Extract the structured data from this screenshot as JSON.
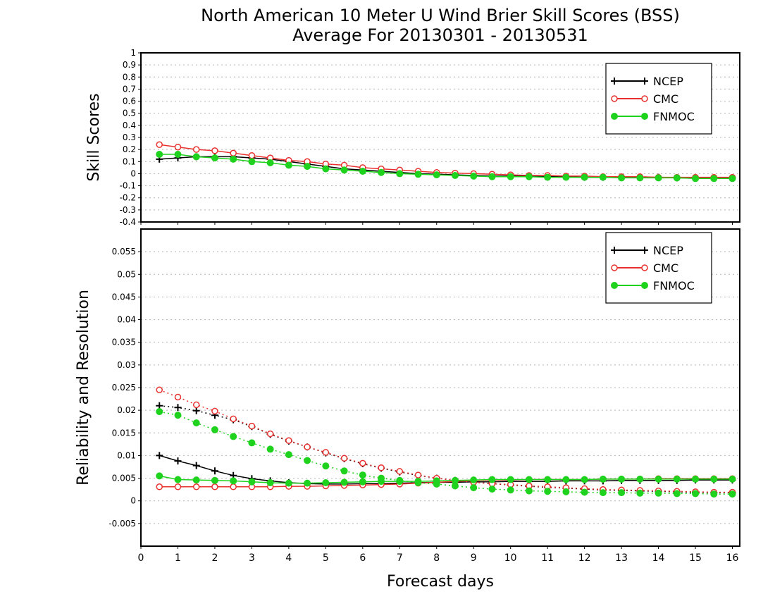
{
  "title_line1": "North American 10 Meter U Wind Brier Skill Scores (BSS)",
  "title_line2": "Average For 20130301 - 20130531",
  "xlabel": "Forecast days",
  "colors": {
    "NCEP": "#000000",
    "CMC": "#e8312f",
    "FNMOC": "#1ed21e"
  },
  "chart_data": [
    {
      "type": "line",
      "ylabel": "Skill Scores",
      "xlim": [
        0,
        16.2
      ],
      "ylim": [
        -0.4,
        1
      ],
      "yticks": [
        -0.4,
        -0.3,
        -0.2,
        -0.1,
        0,
        0.1,
        0.2,
        0.3,
        0.4,
        0.5,
        0.6,
        0.7,
        0.8,
        0.9,
        1
      ],
      "yticklabels": [
        "-0.4",
        "-0.3",
        "-0.2",
        "-0.1",
        "0",
        "0.1",
        "0.2",
        "0.3",
        "0.4",
        "0.5",
        "0.6",
        "0.7",
        "0.8",
        "0.9",
        "1"
      ],
      "xticks": [
        0,
        1,
        2,
        3,
        4,
        5,
        6,
        7,
        8,
        9,
        10,
        11,
        12,
        13,
        14,
        15,
        16
      ],
      "grid": true,
      "legend_position": "top-right",
      "x": [
        0.5,
        1,
        1.5,
        2,
        2.5,
        3,
        3.5,
        4,
        4.5,
        5,
        5.5,
        6,
        6.5,
        7,
        7.5,
        8,
        8.5,
        9,
        9.5,
        10,
        10.5,
        11,
        11.5,
        12,
        12.5,
        13,
        13.5,
        14,
        14.5,
        15,
        15.5,
        16
      ],
      "series": [
        {
          "name": "NCEP",
          "style": "solid",
          "marker": "plus",
          "values": [
            0.12,
            0.13,
            0.14,
            0.14,
            0.14,
            0.13,
            0.12,
            0.1,
            0.08,
            0.06,
            0.04,
            0.03,
            0.02,
            0.01,
            0.0,
            -0.005,
            -0.01,
            -0.015,
            -0.02,
            -0.02,
            -0.02,
            -0.025,
            -0.025,
            -0.03,
            -0.03,
            -0.03,
            -0.03,
            -0.03,
            -0.035,
            -0.035,
            -0.035,
            -0.035
          ]
        },
        {
          "name": "CMC",
          "style": "solid",
          "marker": "open-circle",
          "values": [
            0.24,
            0.22,
            0.2,
            0.19,
            0.17,
            0.15,
            0.13,
            0.11,
            0.1,
            0.08,
            0.07,
            0.05,
            0.04,
            0.03,
            0.02,
            0.01,
            0.005,
            0.0,
            -0.005,
            -0.01,
            -0.015,
            -0.015,
            -0.02,
            -0.02,
            -0.025,
            -0.025,
            -0.025,
            -0.03,
            -0.03,
            -0.03,
            -0.03,
            -0.03
          ]
        },
        {
          "name": "FNMOC",
          "style": "solid",
          "marker": "filled-circle",
          "values": [
            0.16,
            0.16,
            0.14,
            0.13,
            0.12,
            0.1,
            0.09,
            0.07,
            0.06,
            0.04,
            0.03,
            0.02,
            0.01,
            0.0,
            -0.005,
            -0.01,
            -0.015,
            -0.02,
            -0.025,
            -0.025,
            -0.025,
            -0.03,
            -0.03,
            -0.03,
            -0.03,
            -0.035,
            -0.035,
            -0.035,
            -0.035,
            -0.04,
            -0.04,
            -0.04
          ]
        }
      ]
    },
    {
      "type": "line",
      "ylabel": "Reliability and Resolution",
      "xlim": [
        0,
        16.2
      ],
      "ylim": [
        -0.01,
        0.06
      ],
      "yticks": [
        -0.005,
        0,
        0.005,
        0.01,
        0.015,
        0.02,
        0.025,
        0.03,
        0.035,
        0.04,
        0.045,
        0.05,
        0.055
      ],
      "yticklabels": [
        "-0.005",
        "0",
        "0.005",
        "0.01",
        "0.015",
        "0.02",
        "0.025",
        "0.03",
        "0.035",
        "0.04",
        "0.045",
        "0.05",
        "0.055"
      ],
      "xticks": [
        0,
        1,
        2,
        3,
        4,
        5,
        6,
        7,
        8,
        9,
        10,
        11,
        12,
        13,
        14,
        15,
        16
      ],
      "xticklabels": [
        "0",
        "1",
        "2",
        "3",
        "4",
        "5",
        "6",
        "7",
        "8",
        "9",
        "10",
        "11",
        "12",
        "13",
        "14",
        "15",
        "16"
      ],
      "grid": true,
      "legend_position": "top-right",
      "x": [
        0.5,
        1,
        1.5,
        2,
        2.5,
        3,
        3.5,
        4,
        4.5,
        5,
        5.5,
        6,
        6.5,
        7,
        7.5,
        8,
        8.5,
        9,
        9.5,
        10,
        10.5,
        11,
        11.5,
        12,
        12.5,
        13,
        13.5,
        14,
        14.5,
        15,
        15.5,
        16
      ],
      "series": [
        {
          "name": "NCEP",
          "component": "reliability",
          "style": "solid",
          "marker": "plus",
          "values": [
            0.01,
            0.0088,
            0.0078,
            0.0066,
            0.0056,
            0.0049,
            0.0044,
            0.004,
            0.0038,
            0.0037,
            0.0037,
            0.0038,
            0.0038,
            0.0039,
            0.004,
            0.0041,
            0.0041,
            0.0042,
            0.0042,
            0.0043,
            0.0043,
            0.0043,
            0.0044,
            0.0044,
            0.0044,
            0.0045,
            0.0045,
            0.0045,
            0.0045,
            0.0046,
            0.0046,
            0.0046
          ]
        },
        {
          "name": "NCEP",
          "component": "resolution",
          "style": "dotted",
          "marker": "plus",
          "values": [
            0.021,
            0.0206,
            0.0199,
            0.0189,
            0.0179,
            0.0164,
            0.0147,
            0.0132,
            0.0119,
            0.0106,
            0.0093,
            0.0082,
            0.0072,
            0.0064,
            0.0056,
            0.005,
            0.0045,
            0.0041,
            0.0038,
            0.0035,
            0.0032,
            0.003,
            0.0028,
            0.0026,
            0.0024,
            0.0023,
            0.0022,
            0.0021,
            0.002,
            0.0019,
            0.0018,
            0.0018
          ]
        },
        {
          "name": "CMC",
          "component": "reliability",
          "style": "solid",
          "marker": "open-circle",
          "values": [
            0.0031,
            0.0031,
            0.0031,
            0.0031,
            0.0031,
            0.0031,
            0.0031,
            0.0032,
            0.0032,
            0.0033,
            0.0034,
            0.0035,
            0.0036,
            0.0037,
            0.0039,
            0.0041,
            0.0043,
            0.0045,
            0.0046,
            0.0046,
            0.0047,
            0.0047,
            0.0047,
            0.0047,
            0.0048,
            0.0048,
            0.0048,
            0.0049,
            0.0049,
            0.0049,
            0.0049,
            0.0049
          ]
        },
        {
          "name": "CMC",
          "component": "resolution",
          "style": "dotted",
          "marker": "open-circle",
          "values": [
            0.0245,
            0.0229,
            0.0212,
            0.0198,
            0.0181,
            0.0165,
            0.0148,
            0.0133,
            0.0119,
            0.0107,
            0.0094,
            0.0083,
            0.0073,
            0.0065,
            0.0057,
            0.005,
            0.0045,
            0.0041,
            0.0038,
            0.0036,
            0.0033,
            0.0031,
            0.0029,
            0.0027,
            0.0025,
            0.0024,
            0.0023,
            0.0022,
            0.0021,
            0.002,
            0.0019,
            0.0019
          ]
        },
        {
          "name": "FNMOC",
          "component": "reliability",
          "style": "solid",
          "marker": "filled-circle",
          "values": [
            0.0055,
            0.0047,
            0.0046,
            0.0045,
            0.0044,
            0.0042,
            0.004,
            0.0039,
            0.0039,
            0.004,
            0.0041,
            0.0042,
            0.0043,
            0.0043,
            0.0043,
            0.0044,
            0.0045,
            0.0046,
            0.0047,
            0.0047,
            0.0047,
            0.0047,
            0.0047,
            0.0047,
            0.0048,
            0.0048,
            0.0048,
            0.0048,
            0.0048,
            0.0048,
            0.0048,
            0.0048
          ]
        },
        {
          "name": "FNMOC",
          "component": "resolution",
          "style": "dotted",
          "marker": "filled-circle",
          "values": [
            0.0197,
            0.0189,
            0.0172,
            0.0157,
            0.0142,
            0.0128,
            0.0114,
            0.0102,
            0.0089,
            0.0077,
            0.0066,
            0.0057,
            0.005,
            0.0045,
            0.004,
            0.0037,
            0.0033,
            0.0029,
            0.0026,
            0.0024,
            0.0022,
            0.0021,
            0.002,
            0.0019,
            0.0018,
            0.0018,
            0.0017,
            0.0017,
            0.0016,
            0.0016,
            0.0015,
            0.0015
          ]
        }
      ]
    }
  ]
}
